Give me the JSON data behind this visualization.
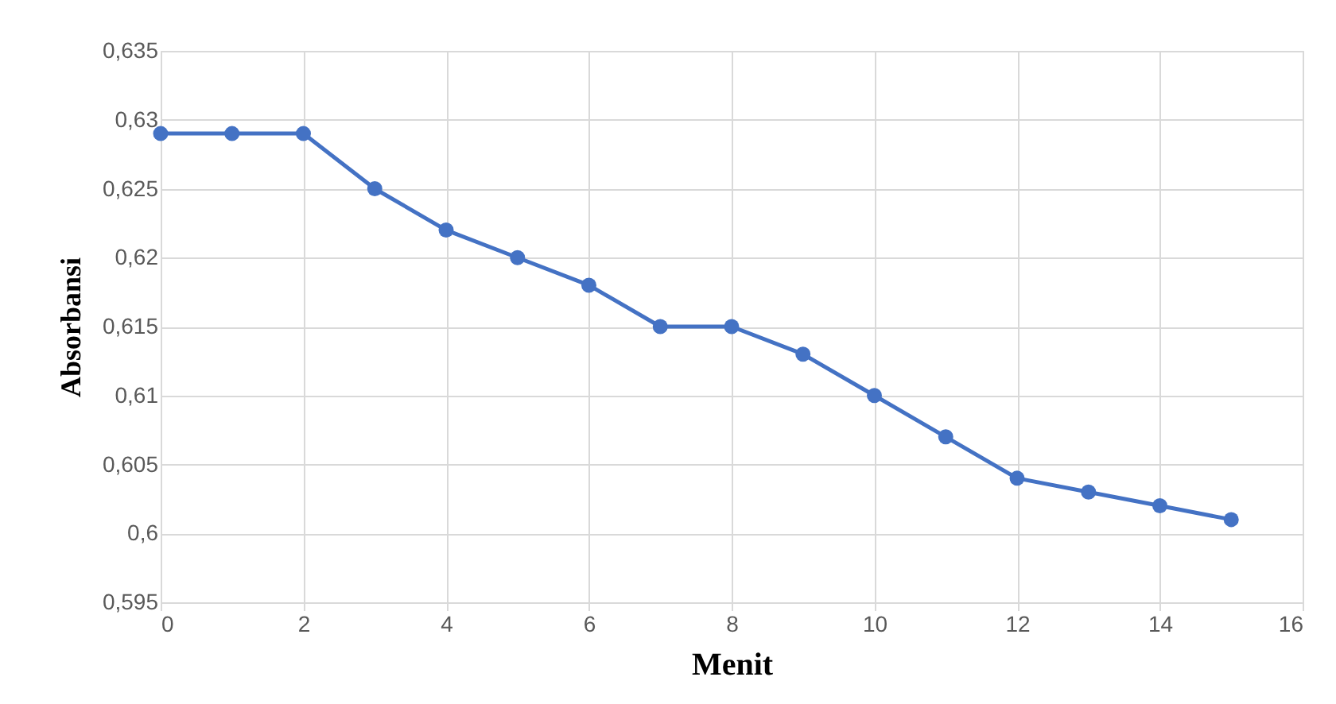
{
  "chart_data": {
    "type": "line",
    "xlabel": "Menit",
    "ylabel": "Absorbansi",
    "x": [
      0,
      1,
      2,
      3,
      4,
      5,
      6,
      7,
      8,
      9,
      10,
      11,
      12,
      13,
      14,
      15
    ],
    "series": [
      {
        "color": "#4472c4",
        "values": [
          0.629,
          0.629,
          0.629,
          0.625,
          0.622,
          0.62,
          0.618,
          0.615,
          0.615,
          0.613,
          0.61,
          0.607,
          0.604,
          0.603,
          0.602,
          0.601
        ]
      }
    ],
    "xlim": [
      0,
      16
    ],
    "xticks": [
      0,
      2,
      4,
      6,
      8,
      10,
      12,
      14,
      16
    ],
    "ylim": [
      0.595,
      0.635
    ],
    "yticks": [
      {
        "value": 0.595,
        "label": "0,595"
      },
      {
        "value": 0.6,
        "label": "0,6"
      },
      {
        "value": 0.605,
        "label": "0,605"
      },
      {
        "value": 0.61,
        "label": "0,61"
      },
      {
        "value": 0.615,
        "label": "0,615"
      },
      {
        "value": 0.62,
        "label": "0,62"
      },
      {
        "value": 0.625,
        "label": "0,625"
      },
      {
        "value": 0.63,
        "label": "0,63"
      },
      {
        "value": 0.635,
        "label": "0,635"
      }
    ],
    "grid": true,
    "marker": "circle",
    "line_style": "solid"
  }
}
